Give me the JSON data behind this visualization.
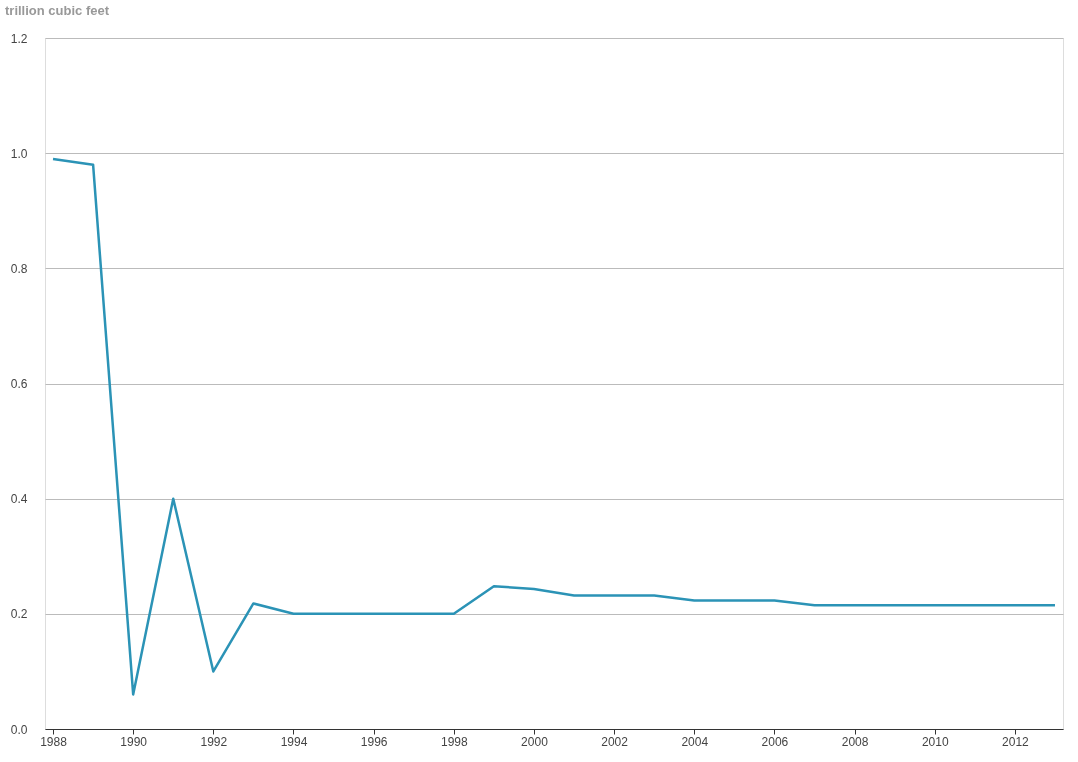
{
  "chart_data": {
    "type": "line",
    "ylabel": "trillion cubic feet",
    "x": [
      1988,
      1989,
      1990,
      1991,
      1992,
      1993,
      1994,
      1995,
      1996,
      1997,
      1998,
      1999,
      2000,
      2001,
      2002,
      2003,
      2004,
      2005,
      2006,
      2007,
      2008,
      2009,
      2010,
      2011,
      2012,
      2013
    ],
    "series": [
      {
        "color": "#2b93b6",
        "values": [
          0.99,
          0.98,
          0.06,
          0.4,
          0.1,
          0.218,
          0.2,
          0.2,
          0.2,
          0.2,
          0.2,
          0.248,
          0.243,
          0.232,
          0.232,
          0.232,
          0.223,
          0.223,
          0.223,
          0.215,
          0.215,
          0.215,
          0.215,
          0.215,
          0.215,
          0.215
        ]
      }
    ],
    "xlim": [
      1987.8,
      2013.2
    ],
    "xticks": [
      1988,
      1990,
      1992,
      1994,
      1996,
      1998,
      2000,
      2002,
      2004,
      2006,
      2008,
      2010,
      2012
    ],
    "ylim": [
      0,
      1.2
    ],
    "yticks": [
      {
        "value": 0,
        "label": "0.0"
      },
      0.2,
      0.4,
      0.6,
      0.8,
      {
        "value": 1,
        "label": "1.0"
      },
      1.2
    ],
    "grid": "y",
    "marker": "none",
    "line_style": "solid"
  }
}
